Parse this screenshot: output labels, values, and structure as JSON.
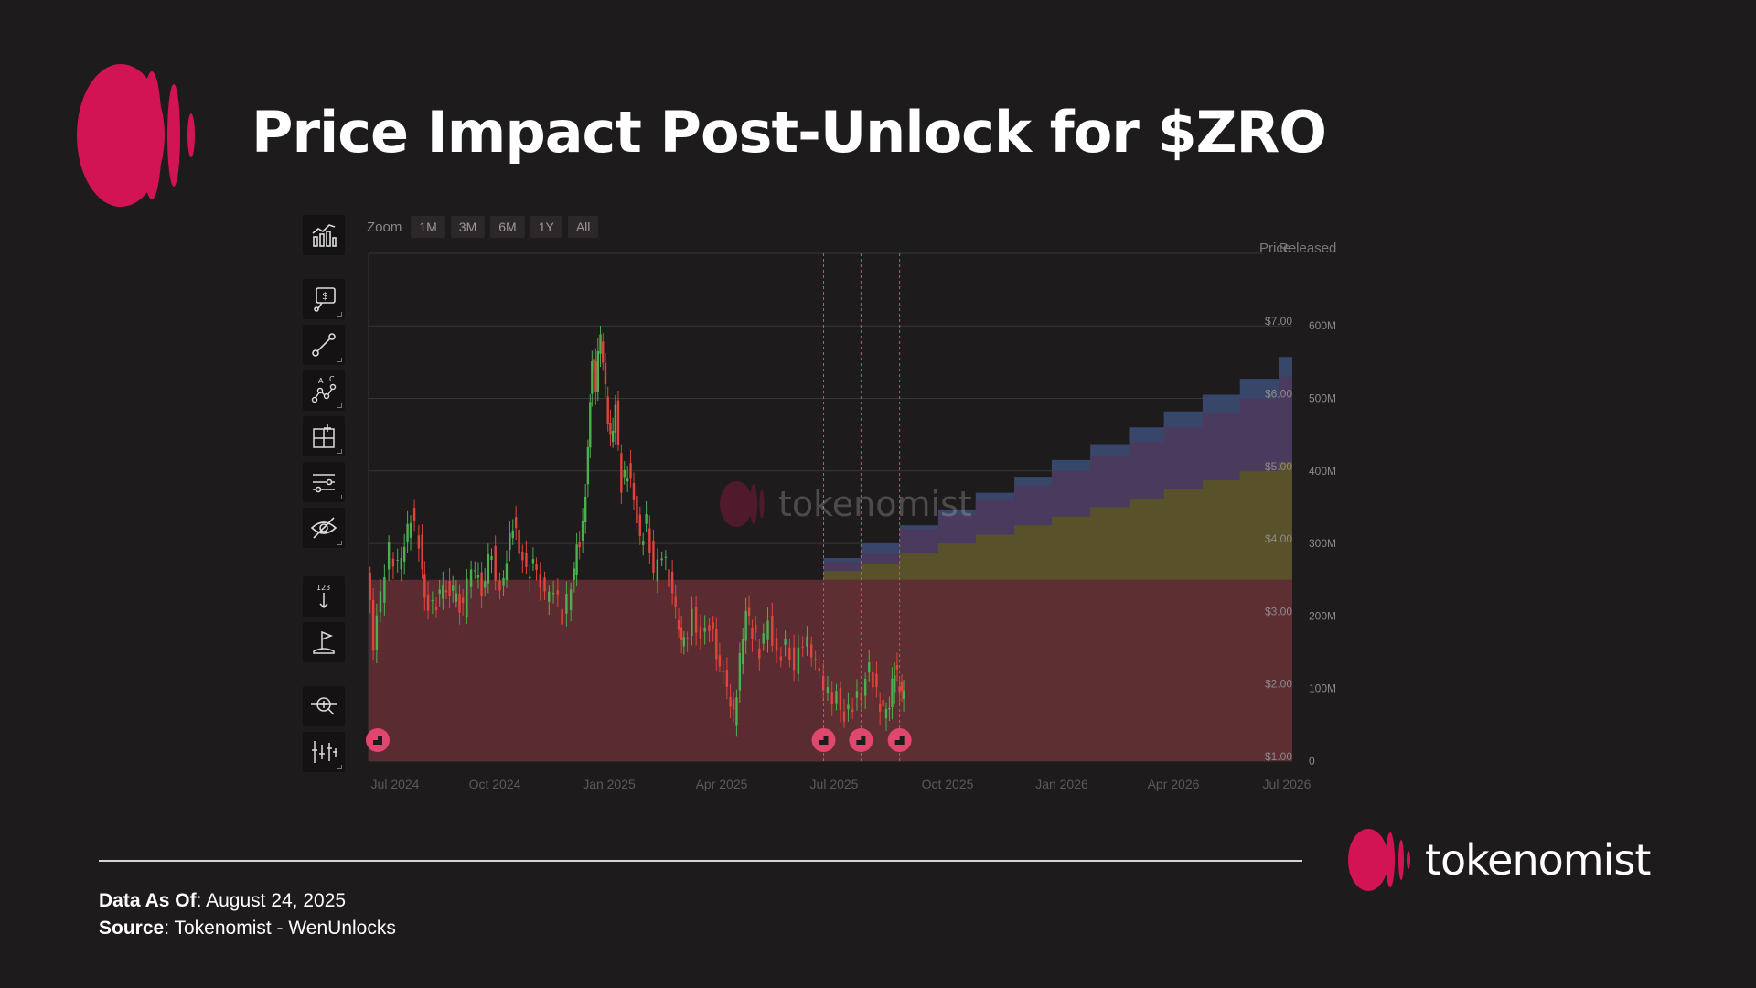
{
  "title": "Price Impact Post-Unlock for $ZRO",
  "zoom": {
    "label": "Zoom",
    "buttons": [
      "1M",
      "3M",
      "6M",
      "1Y",
      "All"
    ]
  },
  "axis_headers": {
    "price": "Price",
    "released": "Released"
  },
  "watermark": "tokenomist",
  "footer": {
    "data_as_of_label": "Data As Of",
    "data_as_of_value": ": August 24, 2025",
    "source_label": "Source",
    "source_value": ": Tokenomist - WenUnlocks"
  },
  "brand": "tokenomist",
  "colors": {
    "background": "#1e1b1c",
    "accent": "#d21455",
    "candle_up": "#4caf50",
    "candle_down": "#e0443a",
    "released_base": "#5e2c33",
    "released_olive": "#5a5227",
    "released_purple": "#4b3a5e",
    "released_blue": "#3a4a6e",
    "unlock_marker": "#e0476e"
  },
  "toolbar_icons": [
    "chart-type-icon",
    "price-alert-icon",
    "trend-line-icon",
    "pattern-icon",
    "measure-icon",
    "indicators-icon",
    "hide-drawings-icon",
    "numbers-icon",
    "flag-icon",
    "crosshair-icon",
    "compare-icon"
  ],
  "chart_data": {
    "type": "line",
    "title": "",
    "x_ticks": [
      "Jul 2024",
      "Oct 2024",
      "Jan 2025",
      "Apr 2025",
      "Jul 2025",
      "Oct 2025",
      "Jan 2026",
      "Apr 2026",
      "Jul 2026"
    ],
    "price_axis": {
      "ticks": [
        "$1.00",
        "$2.00",
        "$3.00",
        "$4.00",
        "$5.00",
        "$6.00",
        "$7.00"
      ],
      "range": [
        1,
        8
      ]
    },
    "released_axis": {
      "ticks": [
        "0",
        "100M",
        "200M",
        "300M",
        "400M",
        "500M",
        "600M"
      ],
      "range": [
        0,
        700
      ]
    },
    "price_series": {
      "name": "",
      "points": [
        [
          "2024-06-20",
          3.6
        ],
        [
          "2024-06-25",
          2.6
        ],
        [
          "2024-07-01",
          3.3
        ],
        [
          "2024-07-08",
          3.9
        ],
        [
          "2024-07-15",
          3.7
        ],
        [
          "2024-07-20",
          4.0
        ],
        [
          "2024-07-25",
          4.4
        ],
        [
          "2024-08-01",
          4.0
        ],
        [
          "2024-08-05",
          3.2
        ],
        [
          "2024-08-12",
          3.1
        ],
        [
          "2024-08-20",
          3.4
        ],
        [
          "2024-08-28",
          3.3
        ],
        [
          "2024-09-05",
          3.1
        ],
        [
          "2024-09-12",
          3.7
        ],
        [
          "2024-09-20",
          3.4
        ],
        [
          "2024-09-28",
          3.9
        ],
        [
          "2024-10-05",
          3.3
        ],
        [
          "2024-10-10",
          3.8
        ],
        [
          "2024-10-15",
          4.3
        ],
        [
          "2024-10-20",
          3.9
        ],
        [
          "2024-10-26",
          3.6
        ],
        [
          "2024-11-03",
          3.7
        ],
        [
          "2024-11-10",
          3.3
        ],
        [
          "2024-11-17",
          3.4
        ],
        [
          "2024-11-24",
          3.0
        ],
        [
          "2024-12-01",
          3.4
        ],
        [
          "2024-12-05",
          3.9
        ],
        [
          "2024-12-10",
          4.2
        ],
        [
          "2024-12-14",
          5.3
        ],
        [
          "2024-12-17",
          6.6
        ],
        [
          "2024-12-20",
          6.2
        ],
        [
          "2024-12-24",
          6.9
        ],
        [
          "2024-12-28",
          6.1
        ],
        [
          "2025-01-01",
          5.4
        ],
        [
          "2025-01-05",
          5.9
        ],
        [
          "2025-01-10",
          4.8
        ],
        [
          "2025-01-15",
          5.0
        ],
        [
          "2025-01-20",
          4.6
        ],
        [
          "2025-01-25",
          4.0
        ],
        [
          "2025-01-30",
          4.3
        ],
        [
          "2025-02-05",
          3.6
        ],
        [
          "2025-02-12",
          3.9
        ],
        [
          "2025-02-20",
          3.3
        ],
        [
          "2025-02-25",
          2.8
        ],
        [
          "2025-03-01",
          2.6
        ],
        [
          "2025-03-08",
          3.0
        ],
        [
          "2025-03-15",
          2.7
        ],
        [
          "2025-03-22",
          2.9
        ],
        [
          "2025-03-30",
          2.3
        ],
        [
          "2025-04-05",
          2.0
        ],
        [
          "2025-04-10",
          1.6
        ],
        [
          "2025-04-15",
          2.4
        ],
        [
          "2025-04-20",
          3.1
        ],
        [
          "2025-04-25",
          2.8
        ],
        [
          "2025-05-01",
          2.5
        ],
        [
          "2025-05-08",
          2.9
        ],
        [
          "2025-05-15",
          2.4
        ],
        [
          "2025-05-22",
          2.6
        ],
        [
          "2025-05-29",
          2.3
        ],
        [
          "2025-06-05",
          2.7
        ],
        [
          "2025-06-12",
          2.5
        ],
        [
          "2025-06-18",
          2.2
        ],
        [
          "2025-06-25",
          1.9
        ],
        [
          "2025-07-02",
          1.9
        ],
        [
          "2025-07-08",
          1.6
        ],
        [
          "2025-07-15",
          1.8
        ],
        [
          "2025-07-22",
          1.9
        ],
        [
          "2025-07-28",
          2.3
        ],
        [
          "2025-08-03",
          1.9
        ],
        [
          "2025-08-08",
          1.7
        ],
        [
          "2025-08-13",
          1.8
        ],
        [
          "2025-08-17",
          2.3
        ],
        [
          "2025-08-21",
          2.0
        ],
        [
          "2025-08-24",
          1.9
        ]
      ]
    },
    "released_series": [
      {
        "name": "",
        "color": "#5e2c33",
        "steps": [
          [
            "2024-06-20",
            250
          ],
          [
            "2026-07-01",
            250
          ]
        ]
      },
      {
        "name": "",
        "color": "#5a5227",
        "steps": [
          [
            "2025-06-20",
            262
          ],
          [
            "2025-07-20",
            272
          ],
          [
            "2025-08-20",
            287
          ],
          [
            "2025-09-20",
            300
          ],
          [
            "2025-10-20",
            312
          ],
          [
            "2025-11-20",
            325
          ],
          [
            "2025-12-20",
            337
          ],
          [
            "2026-01-20",
            350
          ],
          [
            "2026-02-20",
            362
          ],
          [
            "2026-03-20",
            375
          ],
          [
            "2026-04-20",
            387
          ],
          [
            "2026-05-20",
            400
          ],
          [
            "2026-06-20",
            412
          ]
        ]
      },
      {
        "name": "",
        "color": "#4b3a5e",
        "steps": [
          [
            "2025-06-20",
            275
          ],
          [
            "2025-07-20",
            287
          ],
          [
            "2025-08-20",
            320
          ],
          [
            "2025-09-20",
            340
          ],
          [
            "2025-10-20",
            360
          ],
          [
            "2025-11-20",
            380
          ],
          [
            "2025-12-20",
            400
          ],
          [
            "2026-01-20",
            420
          ],
          [
            "2026-02-20",
            440
          ],
          [
            "2026-03-20",
            460
          ],
          [
            "2026-04-20",
            480
          ],
          [
            "2026-05-20",
            500
          ],
          [
            "2026-06-20",
            530
          ]
        ]
      },
      {
        "name": "",
        "color": "#3a4a6e",
        "steps": [
          [
            "2025-06-20",
            280
          ],
          [
            "2025-07-20",
            300
          ],
          [
            "2025-08-20",
            325
          ],
          [
            "2025-09-20",
            347
          ],
          [
            "2025-10-20",
            370
          ],
          [
            "2025-11-20",
            392
          ],
          [
            "2025-12-20",
            415
          ],
          [
            "2026-01-20",
            437
          ],
          [
            "2026-02-20",
            460
          ],
          [
            "2026-03-20",
            482
          ],
          [
            "2026-04-20",
            505
          ],
          [
            "2026-05-20",
            527
          ],
          [
            "2026-06-20",
            557
          ]
        ]
      }
    ],
    "unlock_events": [
      "2024-06-20",
      "2025-06-20",
      "2025-07-20",
      "2025-08-20"
    ],
    "grid": true
  }
}
